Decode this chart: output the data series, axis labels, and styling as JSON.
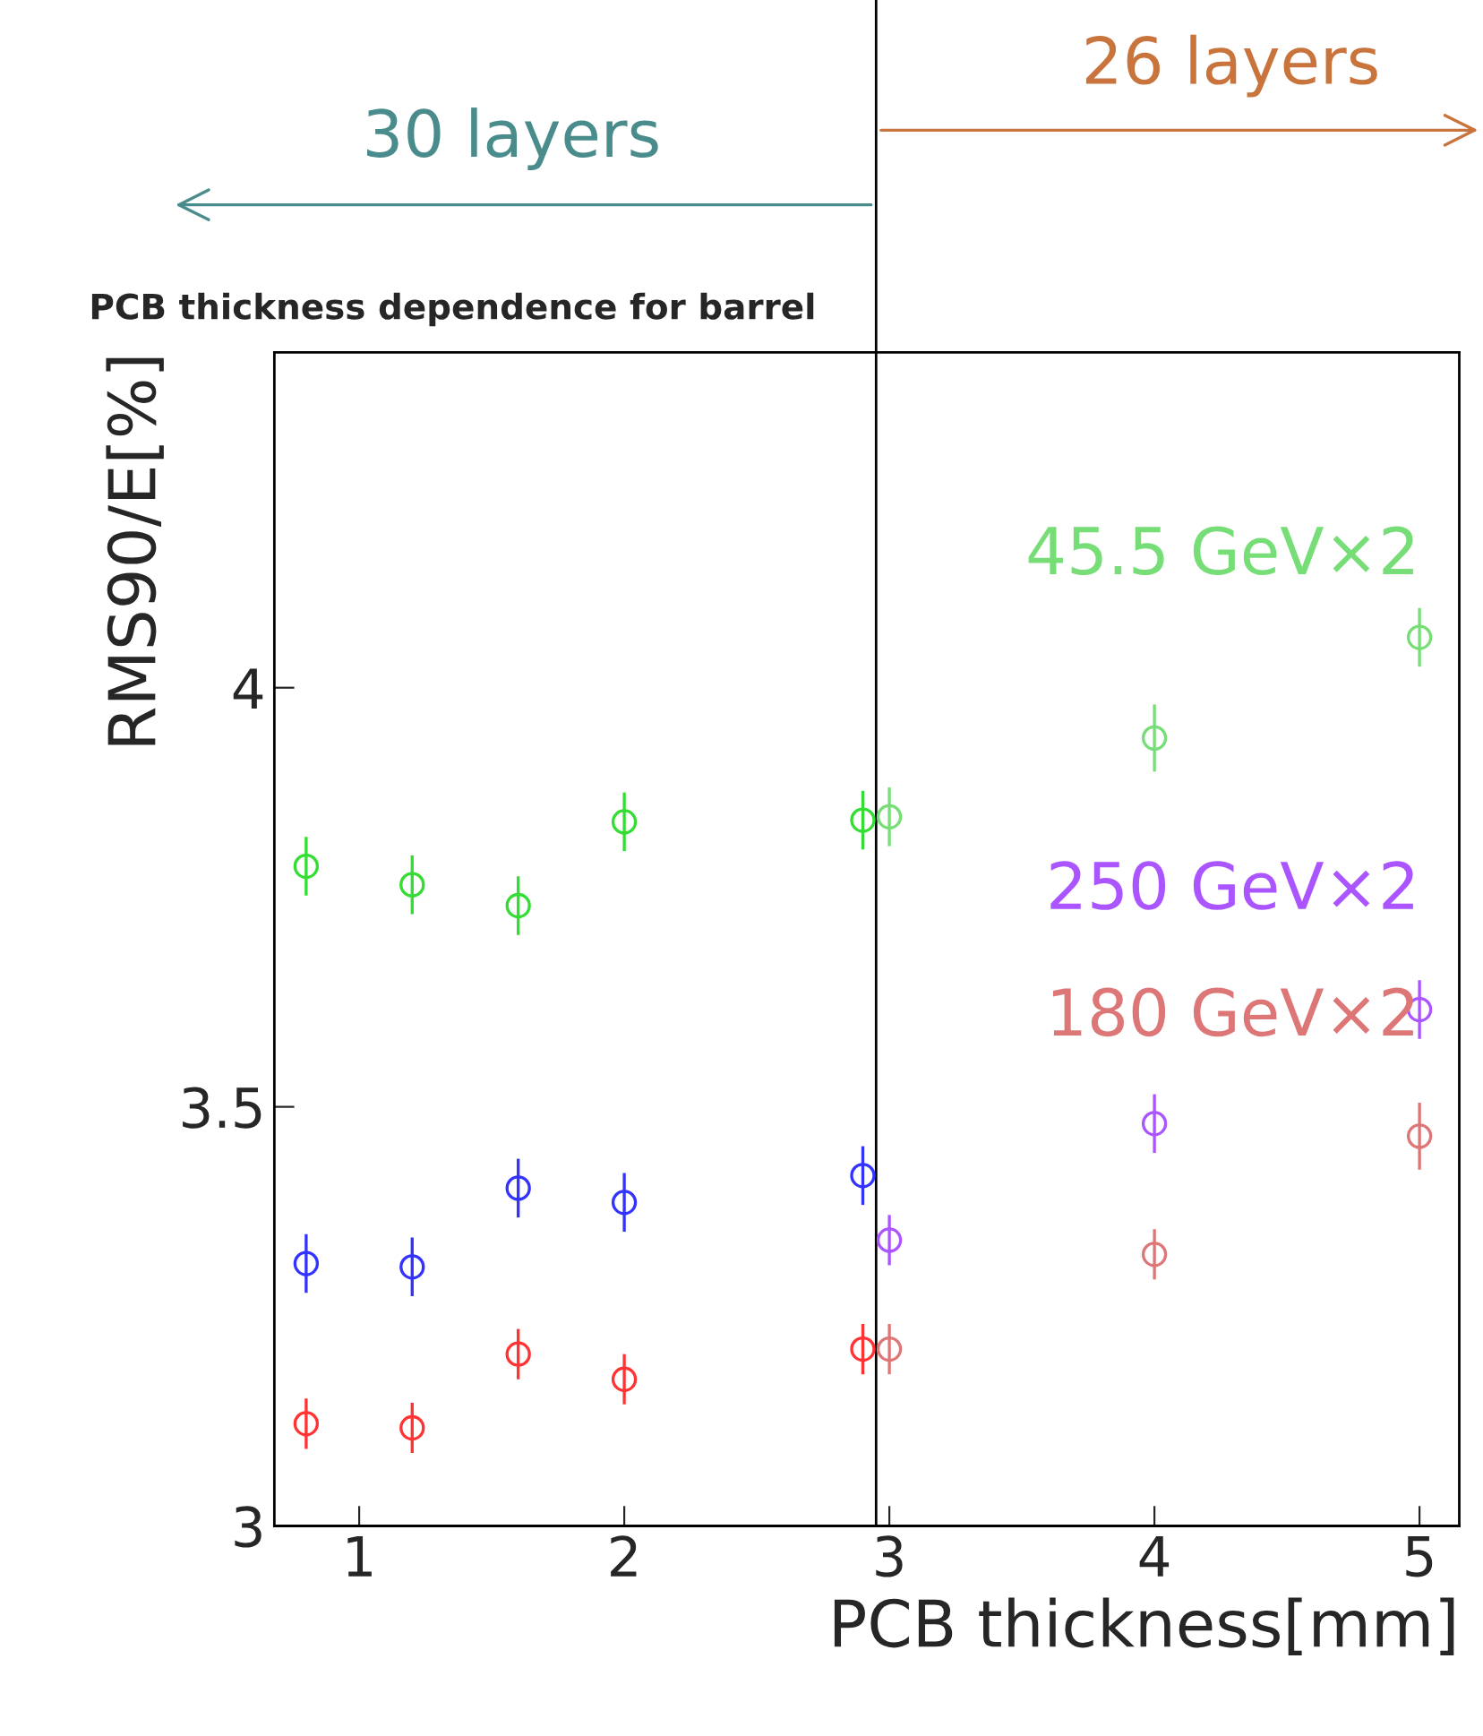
{
  "chart_data": {
    "type": "scatter",
    "title": "PCB thickness dependence for barrel",
    "xlabel": "PCB thickness[mm]",
    "ylabel": "RMS90/E[%]",
    "xlim": [
      0.68,
      5.15
    ],
    "ylim": [
      3,
      4.4
    ],
    "xticks": [
      1,
      2,
      3,
      4,
      5
    ],
    "yticks": [
      3,
      3.5,
      4
    ],
    "marker": "circle",
    "grid": false,
    "ref_lines": [
      {
        "axis": "x",
        "value": 2.95,
        "color": "#000000"
      }
    ],
    "annotations": [
      "30 layers",
      "26 layers"
    ],
    "series": [
      {
        "color": "#33dd33",
        "x": [
          0.8,
          1.2,
          1.6,
          2.0,
          2.9
        ],
        "values": [
          3.787,
          3.765,
          3.74,
          3.84,
          3.842
        ],
        "errors": [
          0.035,
          0.035,
          0.035,
          0.035,
          0.035
        ]
      },
      {
        "color": "#3333ff",
        "x": [
          0.8,
          1.2,
          1.6,
          2.0,
          2.9
        ],
        "values": [
          3.313,
          3.309,
          3.403,
          3.386,
          3.418
        ],
        "errors": [
          0.035,
          0.035,
          0.035,
          0.035,
          0.035
        ]
      },
      {
        "color": "#ff3333",
        "x": [
          0.8,
          1.2,
          1.6,
          2.0,
          2.9
        ],
        "values": [
          3.122,
          3.117,
          3.205,
          3.175,
          3.211
        ],
        "errors": [
          0.03,
          0.03,
          0.03,
          0.03,
          0.03
        ]
      },
      {
        "name": "45.5 GeV×2",
        "color": "#77dd77",
        "x": [
          3.0,
          4.0,
          5.0
        ],
        "values": [
          3.846,
          3.94,
          4.06
        ],
        "errors": [
          0.035,
          0.04,
          0.035
        ]
      },
      {
        "name": "250 GeV×2",
        "color": "#aa55ff",
        "x": [
          3.0,
          4.0,
          5.0
        ],
        "values": [
          3.341,
          3.48,
          3.616
        ],
        "errors": [
          0.03,
          0.035,
          0.035
        ]
      },
      {
        "name": "180 GeV×2",
        "color": "#dd7777",
        "x": [
          3.0,
          4.0,
          5.0
        ],
        "values": [
          3.211,
          3.324,
          3.465
        ],
        "errors": [
          0.03,
          0.03,
          0.04
        ]
      }
    ]
  }
}
